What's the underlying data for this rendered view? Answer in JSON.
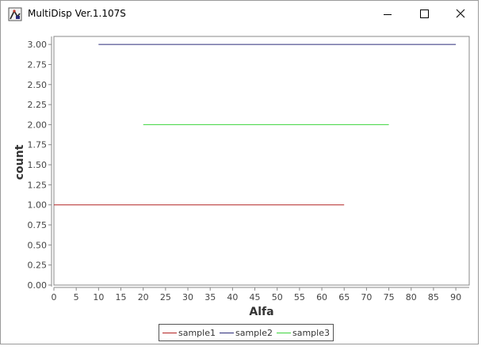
{
  "window": {
    "title": "MultiDisp Ver.1.107S",
    "app_icon": "app-logo-icon",
    "controls": {
      "minimize": "minimize-icon",
      "maximize": "maximize-icon",
      "close": "close-icon"
    }
  },
  "chart_data": {
    "type": "line",
    "title": "",
    "xlabel": "Alfa",
    "ylabel": "count",
    "xlim": [
      0,
      93
    ],
    "ylim": [
      0,
      3.1
    ],
    "x_ticks": [
      0,
      5,
      10,
      15,
      20,
      25,
      30,
      35,
      40,
      45,
      50,
      55,
      60,
      65,
      70,
      75,
      80,
      85,
      90
    ],
    "y_ticks": [
      "0.00",
      "0.25",
      "0.50",
      "0.75",
      "1.00",
      "1.25",
      "1.50",
      "1.75",
      "2.00",
      "2.25",
      "2.50",
      "2.75",
      "3.00"
    ],
    "grid": false,
    "legend_position": "bottom-center",
    "series": [
      {
        "name": "sample1",
        "color": "#b22222",
        "x": [
          0,
          65
        ],
        "y": [
          1,
          1
        ]
      },
      {
        "name": "sample2",
        "color": "#2b2b7a",
        "x": [
          10,
          90
        ],
        "y": [
          3,
          3
        ]
      },
      {
        "name": "sample3",
        "color": "#3cd43c",
        "x": [
          20,
          75
        ],
        "y": [
          2,
          2
        ]
      }
    ]
  }
}
